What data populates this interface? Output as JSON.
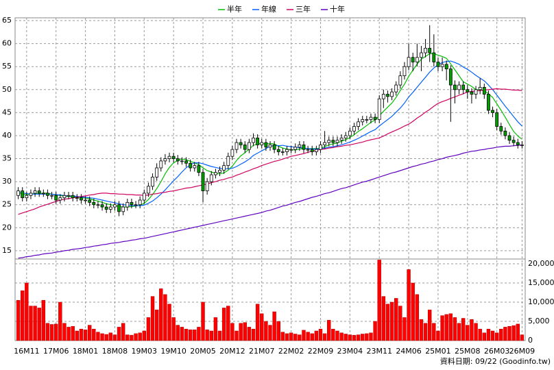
{
  "chart_data": {
    "type": "candlestick",
    "categories": [
      null,
      null,
      "16M11",
      null,
      null,
      null,
      null,
      null,
      null,
      "17M06",
      null,
      null,
      null,
      null,
      null,
      null,
      "18M01",
      null,
      null,
      null,
      null,
      null,
      null,
      "18M08",
      null,
      null,
      null,
      null,
      null,
      null,
      "19M03",
      null,
      null,
      null,
      null,
      null,
      null,
      "19M10",
      null,
      null,
      null,
      null,
      null,
      null,
      "20M05",
      null,
      null,
      null,
      null,
      null,
      null,
      "20M12",
      null,
      null,
      null,
      null,
      null,
      null,
      "21M07",
      null,
      null,
      null,
      null,
      null,
      null,
      "22M02",
      null,
      null,
      null,
      null,
      null,
      null,
      "22M09",
      null,
      null,
      null,
      null,
      null,
      null,
      "23M04",
      null,
      null,
      null,
      null,
      null,
      null,
      "23M11",
      null,
      null,
      null,
      null,
      null,
      null,
      "24M06",
      null,
      null,
      null,
      null,
      null,
      null,
      "25M01",
      null,
      null,
      null,
      null,
      null,
      null,
      "25M08",
      null,
      null,
      null,
      null,
      null,
      null,
      "26M03",
      null,
      null,
      null,
      null,
      null,
      "26M09"
    ],
    "open": [
      27,
      28,
      26.5,
      27,
      27.5,
      28,
      27.5,
      27.5,
      27,
      27,
      26,
      26.5,
      27,
      27,
      26.5,
      26.5,
      26,
      26,
      25.5,
      25,
      25,
      24.5,
      24,
      24.5,
      25,
      23.5,
      24.5,
      25.5,
      25,
      25,
      26,
      27.5,
      29,
      31,
      33,
      34.5,
      35,
      35.5,
      35,
      34.5,
      34.5,
      34,
      33,
      33.5,
      32,
      28,
      30,
      31.5,
      32,
      32.5,
      33.5,
      35.5,
      37,
      38.5,
      38,
      37,
      38.5,
      39.5,
      38,
      38.5,
      37.5,
      38,
      37,
      36.5,
      36.5,
      37,
      37,
      37.5,
      38,
      37,
      37,
      36.5,
      37,
      38,
      38.5,
      39,
      38.5,
      39,
      39.5,
      40,
      41,
      42,
      43,
      43.5,
      43.5,
      44,
      43.5,
      48,
      49,
      48.5,
      49.5,
      51,
      53,
      55,
      57,
      56,
      57,
      58,
      59,
      58,
      56,
      55,
      55.5,
      54.5,
      51,
      50,
      51,
      50,
      49.5,
      49,
      50,
      50.5,
      49,
      45.5,
      45,
      42,
      41,
      40,
      39,
      38.5,
      38
    ],
    "high": [
      28.8,
      28.8,
      27.8,
      28.3,
      28.8,
      28.8,
      28.3,
      28.3,
      27.8,
      27.8,
      27.3,
      27.8,
      27.8,
      27.8,
      27.3,
      27.3,
      26.8,
      26.8,
      26.3,
      25.8,
      25.8,
      25.3,
      25.3,
      25.8,
      25.8,
      25.3,
      26.3,
      26.3,
      25.8,
      26.8,
      28.3,
      29.8,
      31.8,
      34,
      35.3,
      36,
      36.3,
      36.3,
      35.8,
      35.3,
      35.3,
      34.8,
      34.3,
      34.3,
      32.8,
      30.8,
      32.3,
      32.8,
      33.3,
      34.3,
      36.3,
      37.8,
      39.3,
      39.3,
      38.8,
      39.3,
      40.5,
      40.3,
      39.3,
      39.3,
      38.8,
      38.8,
      37.8,
      37.3,
      37.8,
      37.8,
      38.3,
      38.8,
      38.8,
      37.8,
      37.8,
      37.8,
      38.8,
      41,
      39.8,
      39.8,
      39.8,
      40.3,
      40.8,
      41.8,
      42.8,
      43.8,
      44.3,
      44.3,
      44.8,
      44.8,
      48.8,
      50,
      49.8,
      50.3,
      51.8,
      54,
      56,
      60,
      58,
      60,
      59.5,
      61,
      64,
      62,
      57,
      57,
      56.3,
      55.3,
      52,
      51.8,
      51.8,
      51,
      50.3,
      50.8,
      52.5,
      51.3,
      49.8,
      46.3,
      45.8,
      42.8,
      41.8,
      40.8,
      39.8,
      39.3,
      38.8
    ],
    "low": [
      26.2,
      25.7,
      25.7,
      26.2,
      26.7,
      26.7,
      26.7,
      26.2,
      26.2,
      25.2,
      25.2,
      25.7,
      26.2,
      25.7,
      25.7,
      25.2,
      25.2,
      24.7,
      24.2,
      24.2,
      23.7,
      23.2,
      23.2,
      23.7,
      22.5,
      22.7,
      23.7,
      24.2,
      24.2,
      24.2,
      25.2,
      26.7,
      28.2,
      30.2,
      32.2,
      33.7,
      34.2,
      34.2,
      33.7,
      33.7,
      33.2,
      32.2,
      32.2,
      31.2,
      25.5,
      27.2,
      29.2,
      30.7,
      31.2,
      31.7,
      32.7,
      34.7,
      36.2,
      37.2,
      36.2,
      36.2,
      37.7,
      37.2,
      37.2,
      36.7,
      36.7,
      36.2,
      35.7,
      35.7,
      35.7,
      36.2,
      36.2,
      36.7,
      36.2,
      36.2,
      35.7,
      35.7,
      36.2,
      37.2,
      37.7,
      37.7,
      37.7,
      38.2,
      38.7,
      39.2,
      40.2,
      41.2,
      42.2,
      42.7,
      42.7,
      42.7,
      42.7,
      46,
      47.2,
      47.7,
      48.7,
      50.2,
      52.2,
      54.2,
      54,
      55,
      54,
      57,
      56,
      55,
      54,
      54,
      52,
      43,
      47,
      49,
      49,
      48,
      47,
      48,
      49,
      48,
      44.7,
      44,
      41.2,
      40.2,
      39.2,
      38.2,
      37.7,
      37.2,
      37.2
    ],
    "close": [
      28,
      26.5,
      27,
      27.5,
      28,
      27.5,
      27.5,
      27,
      27,
      26,
      26.5,
      27,
      27,
      26.5,
      26.5,
      26,
      26,
      25.5,
      25,
      25,
      24.5,
      24,
      24.5,
      25,
      23.5,
      24.5,
      25.5,
      25,
      25,
      26,
      27.5,
      29,
      31,
      33,
      34.5,
      35,
      35.5,
      35,
      34.5,
      34.5,
      34,
      33,
      33.5,
      32,
      28,
      30,
      31.5,
      32,
      32.5,
      33.5,
      35.5,
      37,
      38.5,
      38,
      37,
      38.5,
      39.5,
      38,
      38.5,
      37.5,
      38,
      37,
      36.5,
      36.5,
      37,
      37,
      37.5,
      38,
      37,
      37,
      36.5,
      37,
      38,
      38.5,
      39,
      38.5,
      39,
      39.5,
      40,
      41,
      42,
      43,
      43.5,
      43.5,
      44,
      43.5,
      48,
      49,
      48.5,
      49.5,
      51,
      53,
      55,
      57,
      56,
      57,
      58,
      59,
      58,
      56,
      55,
      55.5,
      54.5,
      51,
      50,
      51,
      50,
      49.5,
      49,
      50,
      50.5,
      49,
      45.5,
      45,
      42,
      41,
      40,
      39,
      38.5,
      38,
      38
    ],
    "up_color": "#ffffff",
    "down_color": "#00a000",
    "ylim": [
      13.2,
      65.6
    ],
    "yticks": [
      15,
      20,
      25,
      30,
      35,
      40,
      45,
      50,
      55,
      60,
      65
    ],
    "grid": true,
    "legend": "top",
    "series": [
      {
        "name": "半年",
        "color": "#00c000",
        "values": [
          27.5,
          27.3,
          27.2,
          27.3,
          27.4,
          27.4,
          27.5,
          27.5,
          27.3,
          27.1,
          27,
          26.8,
          26.8,
          26.7,
          26.6,
          26.6,
          26.4,
          26.3,
          26.0,
          25.8,
          25.5,
          25.2,
          25.0,
          24.8,
          24.6,
          24.5,
          24.5,
          24.6,
          24.7,
          24.9,
          25.3,
          26.1,
          27.2,
          28.5,
          30.0,
          31.7,
          33.1,
          34.1,
          34.6,
          34.9,
          34.8,
          34.4,
          34.1,
          33.7,
          33.0,
          32.4,
          32.1,
          31.8,
          31.7,
          31.9,
          32.5,
          33.4,
          34.6,
          35.6,
          36.3,
          37.1,
          37.9,
          38.2,
          38.3,
          38.2,
          38.3,
          38.2,
          37.7,
          37.3,
          37.1,
          36.9,
          36.9,
          37.1,
          37.2,
          37.2,
          37.2,
          37.2,
          37.3,
          37.6,
          38.0,
          38.2,
          38.4,
          38.8,
          39.1,
          39.6,
          40.2,
          40.9,
          41.5,
          42.2,
          42.9,
          43.4,
          44.3,
          45.3,
          46.2,
          47.1,
          48.3,
          49.8,
          51.2,
          52.9,
          54.2,
          55.5,
          56.6,
          57.2,
          57.8,
          57.8,
          57.5,
          57.2,
          56.8,
          55.6,
          54.3,
          53.0,
          51.7,
          51.2,
          50.7,
          50.0,
          50.0,
          49.8,
          49.1,
          48.3,
          46.9,
          45.5,
          44.0,
          42.4,
          40.9,
          39.9,
          39.2
        ]
      },
      {
        "name": "年線",
        "color": "#0060ff",
        "values": [
          27.8,
          27.6,
          27.4,
          27.3,
          27.3,
          27.3,
          27.3,
          27.3,
          27.3,
          27.2,
          27.1,
          27.0,
          26.9,
          26.9,
          26.8,
          26.7,
          26.6,
          26.5,
          26.4,
          26.2,
          26.0,
          25.8,
          25.6,
          25.4,
          25.2,
          25.0,
          24.9,
          24.8,
          24.8,
          24.8,
          24.9,
          25.3,
          25.8,
          26.5,
          27.3,
          28.2,
          29.2,
          30.2,
          31.1,
          32.1,
          33.0,
          33.7,
          34.1,
          34.1,
          33.9,
          33.6,
          33.3,
          33.1,
          32.9,
          32.8,
          32.8,
          32.9,
          33.3,
          33.8,
          34.3,
          34.9,
          35.7,
          36.2,
          36.7,
          37.2,
          37.7,
          37.8,
          37.8,
          37.9,
          37.7,
          37.6,
          37.5,
          37.4,
          37.3,
          37.2,
          37.1,
          37.1,
          37.2,
          37.3,
          37.5,
          37.6,
          37.8,
          38.0,
          38.3,
          38.6,
          39.0,
          39.4,
          39.9,
          40.4,
          40.9,
          41.3,
          42.1,
          42.8,
          43.5,
          44.2,
          45.1,
          46.0,
          47.1,
          48.4,
          49.4,
          50.5,
          51.6,
          52.7,
          53.8,
          54.7,
          55.4,
          55.9,
          56.1,
          56.2,
          55.9,
          55.5,
          54.9,
          54.4,
          53.8,
          53.1,
          52.5,
          51.9,
          51.0,
          50.0,
          48.8,
          47.6,
          46.4,
          45.3,
          44.1,
          43.0,
          42.1
        ]
      },
      {
        "name": "三年",
        "color": "#d00060",
        "values": [
          22.9,
          23.2,
          23.5,
          23.8,
          24.1,
          24.5,
          24.8,
          25.1,
          25.4,
          25.7,
          26.0,
          26.2,
          26.3,
          26.5,
          26.6,
          26.8,
          26.9,
          27.1,
          27.2,
          27.4,
          27.5,
          27.5,
          27.4,
          27.4,
          27.3,
          27.3,
          27.2,
          27.2,
          27.1,
          27.1,
          27.0,
          27.1,
          27.3,
          27.4,
          27.6,
          27.7,
          27.9,
          28.0,
          28.2,
          28.4,
          28.6,
          28.7,
          28.9,
          29.1,
          29.3,
          29.5,
          29.8,
          30.0,
          30.3,
          30.5,
          30.8,
          31.0,
          31.4,
          31.7,
          32.1,
          32.4,
          32.8,
          33.1,
          33.5,
          33.8,
          34.1,
          34.4,
          34.6,
          34.9,
          35.2,
          35.5,
          35.7,
          35.9,
          36.1,
          36.4,
          36.6,
          36.8,
          37.0,
          37.1,
          37.3,
          37.4,
          37.6,
          37.7,
          37.9,
          38.0,
          38.2,
          38.4,
          38.6,
          38.9,
          39.1,
          39.3,
          39.5,
          39.9,
          40.4,
          40.8,
          41.2,
          41.6,
          42.1,
          42.5,
          43.1,
          43.8,
          44.4,
          45.1,
          45.7,
          46.4,
          47.0,
          47.4,
          47.7,
          48.1,
          48.4,
          48.8,
          49.1,
          49.5,
          49.6,
          49.7,
          49.8,
          49.9,
          50.0,
          50.1,
          50.2,
          50.1,
          50.1,
          50.0,
          49.9,
          49.9,
          49.8
        ]
      },
      {
        "name": "十年",
        "color": "#6000c0",
        "values": [
          13.4,
          13.5,
          13.7,
          13.8,
          14.0,
          14.1,
          14.3,
          14.4,
          14.5,
          14.7,
          14.8,
          15.0,
          15.1,
          15.3,
          15.4,
          15.5,
          15.7,
          15.8,
          16.0,
          16.1,
          16.3,
          16.4,
          16.6,
          16.7,
          16.8,
          17.0,
          17.1,
          17.3,
          17.4,
          17.6,
          17.7,
          17.9,
          18.1,
          18.3,
          18.5,
          18.7,
          18.9,
          19.1,
          19.3,
          19.5,
          19.7,
          19.9,
          20.1,
          20.3,
          20.5,
          20.7,
          20.9,
          21.1,
          21.3,
          21.5,
          21.7,
          21.9,
          22.1,
          22.3,
          22.5,
          22.7,
          22.9,
          23.1,
          23.3,
          23.6,
          23.8,
          24.1,
          24.4,
          24.7,
          24.9,
          25.2,
          25.5,
          25.7,
          26.0,
          26.3,
          26.6,
          26.8,
          27.1,
          27.4,
          27.6,
          27.9,
          28.2,
          28.5,
          28.7,
          29.0,
          29.3,
          29.6,
          29.9,
          30.1,
          30.4,
          30.7,
          31.0,
          31.3,
          31.6,
          31.9,
          32.1,
          32.4,
          32.7,
          33.0,
          33.3,
          33.5,
          33.8,
          34.0,
          34.3,
          34.5,
          34.8,
          35.0,
          35.3,
          35.5,
          35.7,
          35.9,
          36.2,
          36.4,
          36.6,
          36.7,
          36.9,
          37.0,
          37.2,
          37.3,
          37.5,
          37.6,
          37.7,
          37.7,
          37.8,
          37.9,
          38.0
        ]
      }
    ],
    "volume": {
      "type": "bar",
      "color": "#ff0000",
      "ylim": [
        0,
        21250
      ],
      "yticks": [
        0,
        {
          "value": 5000,
          "label": "5,000"
        },
        {
          "value": 10000,
          "label": "10,000"
        },
        {
          "value": 15000,
          "label": "15,000"
        },
        {
          "value": 20000,
          "label": "20,000"
        }
      ],
      "values": [
        10500,
        13000,
        15000,
        9000,
        9000,
        8500,
        10500,
        4500,
        4200,
        4300,
        10000,
        4500,
        3500,
        3700,
        2500,
        3000,
        2800,
        4000,
        3000,
        2200,
        1800,
        1600,
        2000,
        1500,
        3500,
        4500,
        1500,
        1400,
        1800,
        2000,
        2500,
        6000,
        11500,
        8000,
        13500,
        12000,
        9500,
        6000,
        4000,
        3500,
        3000,
        2800,
        2800,
        3500,
        10000,
        2800,
        2500,
        6000,
        2500,
        8500,
        9000,
        4500,
        2500,
        4500,
        4700,
        3500,
        3000,
        9500,
        7000,
        5000,
        4000,
        7500,
        5000,
        2200,
        1800,
        2000,
        1700,
        1500,
        2700,
        2200,
        1800,
        2500,
        3000,
        1800,
        5300,
        3000,
        2500,
        2000,
        1700,
        1500,
        1400,
        1500,
        1700,
        1800,
        2000,
        5000,
        21000,
        11500,
        9500,
        10000,
        11000,
        9000,
        6000,
        18500,
        15000,
        12000,
        5500,
        4500,
        8000,
        4500,
        2500,
        6500,
        6800,
        7000,
        6000,
        4500,
        5800,
        4000,
        5500,
        4500,
        3000,
        2000,
        3000,
        2500,
        2000,
        3000,
        3500,
        3700,
        3900,
        4300,
        1500
      ]
    },
    "footer": "資料日期: 09/22 (Goodinfo.tw)"
  }
}
